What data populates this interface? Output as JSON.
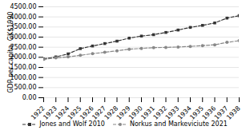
{
  "chart_data": {
    "type": "line",
    "x": [
      1922,
      1923,
      1924,
      1925,
      1926,
      1927,
      1928,
      1929,
      1930,
      1931,
      1932,
      1933,
      1934,
      1935,
      1936,
      1937,
      1938
    ],
    "series": [
      {
        "name": "Jones and Wolf 2010",
        "color": "#333333",
        "marker": "square",
        "line_style": "dashed",
        "values": [
          1920,
          2020,
          2170,
          2430,
          2560,
          2680,
          2800,
          2950,
          3050,
          3120,
          3230,
          3350,
          3480,
          3580,
          3700,
          3940,
          4060
        ]
      },
      {
        "name": "Norkus and Markeviciute 2021",
        "color": "#888888",
        "marker": "circle",
        "line_style": "dashed",
        "values": [
          1900,
          1970,
          2020,
          2100,
          2180,
          2250,
          2320,
          2400,
          2440,
          2480,
          2490,
          2510,
          2540,
          2580,
          2620,
          2740,
          2820
        ]
      }
    ],
    "xlim": [
      1922,
      1938
    ],
    "xticks": [
      1922,
      1923,
      1924,
      1925,
      1926,
      1927,
      1928,
      1929,
      1930,
      1931,
      1932,
      1933,
      1934,
      1935,
      1936,
      1937,
      1938
    ],
    "ylabel": "GDP per capita, GK$1990",
    "ylim": [
      0,
      4500
    ],
    "yticks": [
      {
        "value": 0,
        "label": "0.00"
      },
      {
        "value": 500,
        "label": "500.00"
      },
      {
        "value": 1000,
        "label": "1000.00"
      },
      {
        "value": 1500,
        "label": "1500.00"
      },
      {
        "value": 2000,
        "label": "2000.00"
      },
      {
        "value": 2500,
        "label": "2500.00"
      },
      {
        "value": 3000,
        "label": "3000.00"
      },
      {
        "value": 3500,
        "label": "3500.00"
      },
      {
        "value": 4000,
        "label": "4000.00"
      },
      {
        "value": 4500,
        "label": "4500.00"
      }
    ],
    "grid": true,
    "legend": "bottom"
  }
}
